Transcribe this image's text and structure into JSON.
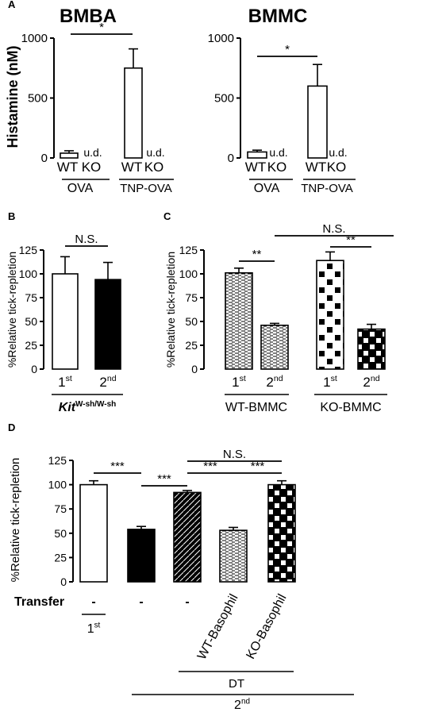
{
  "chart_data": [
    {
      "panel": "A",
      "type": "bar",
      "title": "BMBA",
      "ylabel": "Histamine (nM)",
      "ylim": [
        0,
        1000
      ],
      "yticks": [
        0,
        500,
        1000
      ],
      "categories": [
        "WT",
        "KO",
        "WT",
        "KO"
      ],
      "groups": [
        "OVA",
        "TNP-OVA"
      ],
      "values": [
        40,
        null,
        750,
        null
      ],
      "errors": [
        20,
        null,
        160,
        null
      ],
      "value_labels": [
        "",
        "u.d.",
        "",
        "u.d."
      ],
      "significance": [
        {
          "label": "*",
          "between": [
            0,
            2
          ]
        }
      ]
    },
    {
      "panel": "",
      "type": "bar",
      "title": "BMMC",
      "ylim": [
        0,
        1000
      ],
      "yticks": [
        0,
        500,
        1000
      ],
      "categories": [
        "WT",
        "KO",
        "WT",
        "KO"
      ],
      "groups": [
        "OVA",
        "TNP-OVA"
      ],
      "values": [
        50,
        null,
        600,
        null
      ],
      "errors": [
        15,
        null,
        180,
        null
      ],
      "value_labels": [
        "",
        "u.d.",
        "",
        "u.d."
      ],
      "significance": [
        {
          "label": "*",
          "between": [
            0,
            2
          ]
        }
      ]
    },
    {
      "panel": "B",
      "type": "bar",
      "ylabel": "%Relative tick-repletion",
      "ylim": [
        0,
        125
      ],
      "yticks": [
        0,
        25,
        50,
        75,
        100,
        125
      ],
      "categories": [
        "1st",
        "2nd"
      ],
      "group_label": "KitW-sh/W-sh",
      "values": [
        100,
        94
      ],
      "errors": [
        18,
        18
      ],
      "fills": [
        "white",
        "black"
      ],
      "significance": [
        {
          "label": "N.S.",
          "between": [
            0,
            1
          ]
        }
      ]
    },
    {
      "panel": "C",
      "type": "bar",
      "ylabel": "%Relative tick-repletion",
      "ylim": [
        0,
        125
      ],
      "yticks": [
        0,
        25,
        50,
        75,
        100,
        125
      ],
      "categories": [
        "1st",
        "2nd",
        "1st",
        "2nd"
      ],
      "groups": [
        "WT-BMMC",
        "KO-BMMC"
      ],
      "values": [
        101,
        46,
        114,
        42
      ],
      "errors": [
        5,
        2,
        9,
        5
      ],
      "fills": [
        "hstripe",
        "hstripe",
        "checker-sparse",
        "checker"
      ],
      "significance": [
        {
          "label": "**",
          "between": [
            0,
            1
          ]
        },
        {
          "label": "**",
          "between": [
            2,
            3
          ]
        },
        {
          "label": "N.S.",
          "between": [
            1,
            3
          ]
        }
      ]
    },
    {
      "panel": "D",
      "type": "bar",
      "ylabel": "%Relative tick-repletion",
      "ylim": [
        0,
        125
      ],
      "yticks": [
        0,
        25,
        50,
        75,
        100,
        125
      ],
      "row_label": "Transfer",
      "categories": [
        "-",
        "-",
        "-",
        "WT-Basophil",
        "KO-Basophil"
      ],
      "values": [
        100,
        54,
        92,
        53,
        100
      ],
      "errors": [
        4,
        3,
        2,
        3,
        4
      ],
      "fills": [
        "white",
        "black",
        "diag",
        "hstripe",
        "checker"
      ],
      "group_labels": {
        "first": "1st",
        "dt": "DT",
        "second": "2nd"
      },
      "significance": [
        {
          "label": "***",
          "between": [
            0,
            1
          ]
        },
        {
          "label": "***",
          "between": [
            1,
            2
          ]
        },
        {
          "label": "***",
          "between": [
            2,
            3
          ]
        },
        {
          "label": "***",
          "between": [
            3,
            4
          ]
        },
        {
          "label": "N.S.",
          "between": [
            2,
            4
          ]
        }
      ]
    }
  ]
}
